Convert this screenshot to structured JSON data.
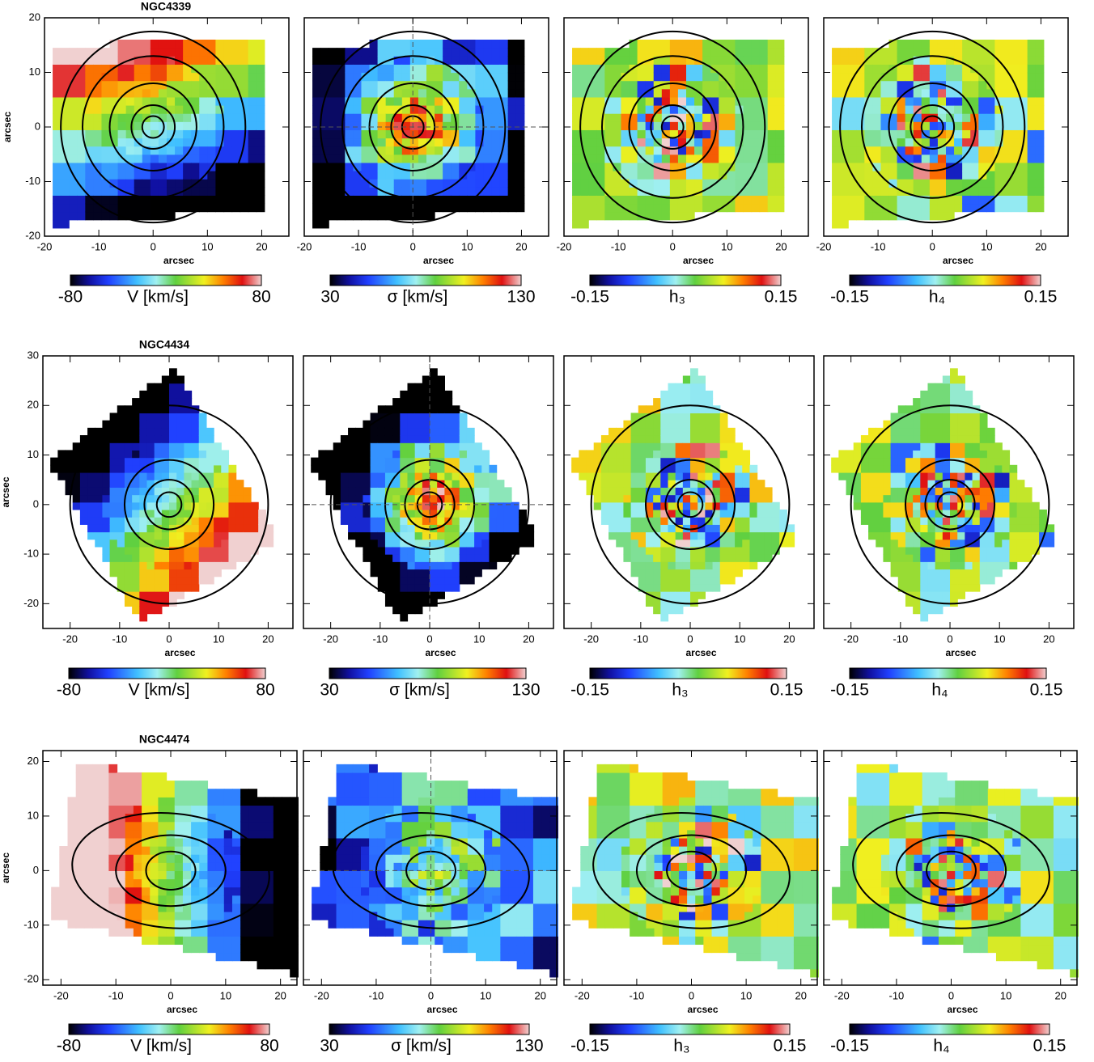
{
  "chart_data": [
    {
      "type": "map",
      "title": "NGC4339",
      "xlabel": "arcsec",
      "ylabel": "arcsec",
      "xlim": [
        -20,
        25
      ],
      "ylim": [
        -20,
        20
      ],
      "xticks": [
        -20,
        -10,
        0,
        10,
        20
      ],
      "yticks": [
        -20,
        -10,
        0,
        10,
        20
      ],
      "clim": [
        -80,
        80
      ],
      "cticks": [
        -80,
        80
      ],
      "clabel": "V [km/s]"
    },
    {
      "type": "map",
      "xlabel": "arcsec",
      "xlim": [
        -20,
        25
      ],
      "ylim": [
        -20,
        20
      ],
      "xticks": [
        -20,
        -10,
        0,
        10,
        20
      ],
      "yticks": [
        -20,
        -10,
        0,
        10,
        20
      ],
      "clim": [
        30,
        130
      ],
      "cticks": [
        30,
        130
      ],
      "clabel": "σ [km/s]"
    },
    {
      "type": "map",
      "xlabel": "arcsec",
      "xlim": [
        -20,
        25
      ],
      "ylim": [
        -20,
        20
      ],
      "xticks": [
        -20,
        -10,
        0,
        10,
        20
      ],
      "yticks": [
        -20,
        -10,
        0,
        10,
        20
      ],
      "clim": [
        -0.15,
        0.15
      ],
      "cticks": [
        -0.15,
        0.15
      ],
      "clabel": "h₃"
    },
    {
      "type": "map",
      "xlabel": "arcsec",
      "xlim": [
        -20,
        25
      ],
      "ylim": [
        -20,
        20
      ],
      "xticks": [
        -20,
        -10,
        0,
        10,
        20
      ],
      "yticks": [
        -20,
        -10,
        0,
        10,
        20
      ],
      "clim": [
        -0.15,
        0.15
      ],
      "cticks": [
        -0.15,
        0.15
      ],
      "clabel": "h₄"
    },
    {
      "type": "map",
      "title": "NGC4434",
      "xlabel": "arcsec",
      "ylabel": "arcsec",
      "xlim": [
        -25.5,
        25
      ],
      "ylim": [
        -25,
        30
      ],
      "xticks": [
        -20,
        -10,
        0,
        10,
        20
      ],
      "yticks": [
        -20,
        -10,
        0,
        10,
        20,
        30
      ],
      "clim": [
        -80,
        80
      ],
      "cticks": [
        -80,
        80
      ],
      "clabel": "V [km/s]"
    },
    {
      "type": "map",
      "xlabel": "arcsec",
      "xlim": [
        -25.5,
        25
      ],
      "ylim": [
        -25,
        30
      ],
      "xticks": [
        -20,
        -10,
        0,
        10,
        20
      ],
      "yticks": [
        -20,
        -10,
        0,
        10,
        20,
        30
      ],
      "clim": [
        30,
        130
      ],
      "cticks": [
        30,
        130
      ],
      "clabel": "σ [km/s]"
    },
    {
      "type": "map",
      "xlabel": "arcsec",
      "xlim": [
        -25.5,
        25
      ],
      "ylim": [
        -25,
        30
      ],
      "xticks": [
        -20,
        -10,
        0,
        10,
        20
      ],
      "yticks": [
        -20,
        -10,
        0,
        10,
        20,
        30
      ],
      "clim": [
        -0.15,
        0.15
      ],
      "cticks": [
        -0.15,
        0.15
      ],
      "clabel": "h₃"
    },
    {
      "type": "map",
      "xlabel": "arcsec",
      "xlim": [
        -25.5,
        25
      ],
      "ylim": [
        -25,
        30
      ],
      "xticks": [
        -20,
        -10,
        0,
        10,
        20
      ],
      "yticks": [
        -20,
        -10,
        0,
        10,
        20,
        30
      ],
      "clim": [
        -0.15,
        0.15
      ],
      "cticks": [
        -0.15,
        0.15
      ],
      "clabel": "h₄"
    },
    {
      "type": "map",
      "title": "NGC4474",
      "xlabel": "arcsec",
      "ylabel": "arcsec",
      "xlim": [
        -23.3,
        23
      ],
      "ylim": [
        -21,
        22
      ],
      "xticks": [
        -20,
        -10,
        0,
        10,
        20
      ],
      "yticks": [
        -20,
        -10,
        0,
        10,
        20
      ],
      "clim": [
        -80,
        80
      ],
      "cticks": [
        -80,
        80
      ],
      "clabel": "V [km/s]"
    },
    {
      "type": "map",
      "xlabel": "arcsec",
      "xlim": [
        -23.3,
        23
      ],
      "ylim": [
        -21,
        22
      ],
      "xticks": [
        -20,
        -10,
        0,
        10,
        20
      ],
      "yticks": [
        -20,
        -10,
        0,
        10,
        20
      ],
      "clim": [
        30,
        130
      ],
      "cticks": [
        30,
        130
      ],
      "clabel": "σ [km/s]"
    },
    {
      "type": "map",
      "xlabel": "arcsec",
      "xlim": [
        -23.3,
        23
      ],
      "ylim": [
        -21,
        22
      ],
      "xticks": [
        -20,
        -10,
        0,
        10,
        20
      ],
      "yticks": [
        -20,
        -10,
        0,
        10,
        20
      ],
      "clim": [
        -0.15,
        0.15
      ],
      "cticks": [
        -0.15,
        0.15
      ],
      "clabel": "h₃"
    },
    {
      "type": "map",
      "xlabel": "arcsec",
      "xlim": [
        -23.3,
        23
      ],
      "ylim": [
        -21,
        22
      ],
      "xticks": [
        -20,
        -10,
        0,
        10,
        20
      ],
      "yticks": [
        -20,
        -10,
        0,
        10,
        20
      ],
      "clim": [
        -0.15,
        0.15
      ],
      "cticks": [
        -0.15,
        0.15
      ],
      "clabel": "h₄"
    }
  ]
}
